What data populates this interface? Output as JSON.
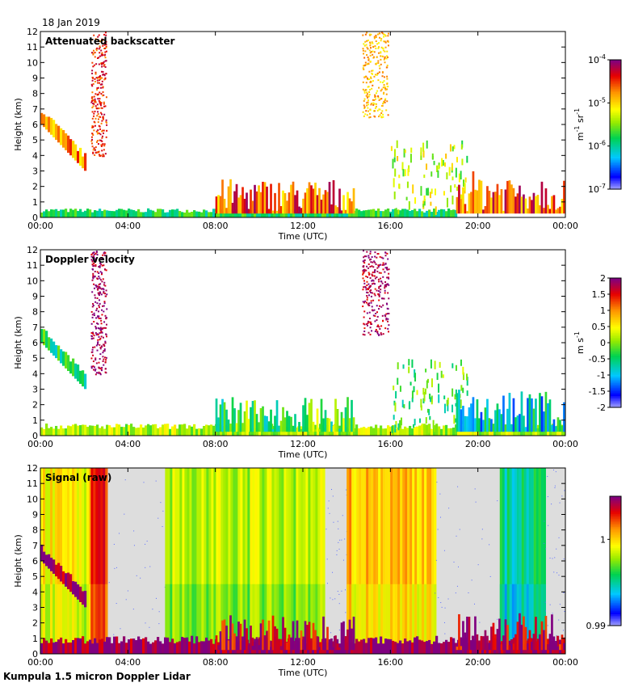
{
  "date": "18 Jan 2019",
  "footer": "Kumpula 1.5 micron Doppler Lidar",
  "colors": {
    "signal_background": "#dddddd",
    "missing": "#ffffff",
    "frame": "#000000"
  },
  "chart_data": [
    {
      "type": "heatmap",
      "title": "Attenuated backscatter",
      "xlabel": "Time (UTC)",
      "ylabel": "Height (km)",
      "xlim": [
        0,
        24
      ],
      "ylim": [
        0,
        12
      ],
      "xticks": [
        "00:00",
        "04:00",
        "08:00",
        "12:00",
        "16:00",
        "20:00",
        "00:00"
      ],
      "yticks": [
        "0",
        "1",
        "2",
        "3",
        "4",
        "5",
        "6",
        "7",
        "8",
        "9",
        "10",
        "11",
        "12"
      ],
      "colorbar": {
        "scale": "log",
        "range": [
          1e-07,
          0.0001
        ],
        "tick_labels": [
          {
            "value": -4,
            "base": "10",
            "exp": "-4"
          },
          {
            "value": -5,
            "base": "10",
            "exp": "-5"
          },
          {
            "value": -6,
            "base": "10",
            "exp": "-6"
          },
          {
            "value": -7,
            "base": "10",
            "exp": "-7"
          }
        ],
        "unit": {
          "parts": [
            [
              "m",
              ""
            ],
            [
              "-1",
              "sup"
            ],
            [
              " sr",
              ""
            ],
            [
              "-1",
              "sup"
            ]
          ]
        }
      },
      "features": [
        {
          "kind": "surface_layer",
          "t": [
            0,
            19
          ],
          "top_km": 0.45,
          "level": 0.4
        },
        {
          "kind": "cloud",
          "t": [
            0,
            2.0
          ],
          "bottom_km": [
            6.0,
            3.0
          ],
          "depth_km": 0.9,
          "level": 0.75
        },
        {
          "kind": "virga",
          "t": [
            2.3,
            3.0
          ],
          "h": [
            4.0,
            12.0
          ],
          "level": 0.85
        },
        {
          "kind": "boundary_layer",
          "t": [
            8.0,
            14.3
          ],
          "top_km": 2.5,
          "level": 0.8
        },
        {
          "kind": "virga",
          "t": [
            14.7,
            15.9
          ],
          "h": [
            6.5,
            12.0
          ],
          "level": 0.7
        },
        {
          "kind": "scattered",
          "t": [
            16.0,
            19.5
          ],
          "h": [
            0.5,
            5.0
          ],
          "level": 0.55
        },
        {
          "kind": "boundary_layer",
          "t": [
            19.0,
            24.0
          ],
          "top_km": 3.0,
          "level": 0.8
        }
      ]
    },
    {
      "type": "heatmap",
      "title": "Doppler velocity",
      "xlabel": "Time (UTC)",
      "ylabel": "Height (km)",
      "xlim": [
        0,
        24
      ],
      "ylim": [
        0,
        12
      ],
      "xticks": [
        "00:00",
        "04:00",
        "08:00",
        "12:00",
        "16:00",
        "20:00",
        "00:00"
      ],
      "yticks": [
        "0",
        "1",
        "2",
        "3",
        "4",
        "5",
        "6",
        "7",
        "8",
        "9",
        "10",
        "11",
        "12"
      ],
      "colorbar": {
        "scale": "linear",
        "range": [
          -2,
          2
        ],
        "tick_labels": [
          {
            "value": 2,
            "label": "2"
          },
          {
            "value": 1.5,
            "label": "1.5"
          },
          {
            "value": 1,
            "label": "1"
          },
          {
            "value": 0.5,
            "label": "0.5"
          },
          {
            "value": 0,
            "label": "0"
          },
          {
            "value": -0.5,
            "label": "-0.5"
          },
          {
            "value": -1,
            "label": "-1"
          },
          {
            "value": -1.5,
            "label": "-1.5"
          },
          {
            "value": -2,
            "label": "-2"
          }
        ],
        "unit": {
          "parts": [
            [
              "m s",
              ""
            ],
            [
              "-1",
              "sup"
            ]
          ]
        }
      },
      "features": [
        {
          "kind": "surface_layer",
          "t": [
            0,
            24
          ],
          "top_km": 0.6,
          "level": 0.55
        },
        {
          "kind": "cloud",
          "t": [
            0,
            2.0
          ],
          "bottom_km": [
            6.0,
            3.0
          ],
          "depth_km": 0.9,
          "level": 0.4
        },
        {
          "kind": "virga",
          "t": [
            2.3,
            3.0
          ],
          "h": [
            4.0,
            12.0
          ],
          "level": 0.97
        },
        {
          "kind": "boundary_layer",
          "t": [
            8.0,
            14.3
          ],
          "top_km": 2.5,
          "level": 0.45
        },
        {
          "kind": "virga",
          "t": [
            14.7,
            15.9
          ],
          "h": [
            6.5,
            12.0
          ],
          "level": 0.95
        },
        {
          "kind": "scattered",
          "t": [
            16.0,
            19.5
          ],
          "h": [
            0.5,
            5.0
          ],
          "level": 0.45
        },
        {
          "kind": "boundary_layer",
          "t": [
            19.0,
            24.0
          ],
          "top_km": 3.0,
          "level": 0.3
        }
      ]
    },
    {
      "type": "heatmap",
      "title": "Signal (raw)",
      "xlabel": "Time (UTC)",
      "ylabel": "Height (km)",
      "xlim": [
        0,
        24
      ],
      "ylim": [
        0,
        12
      ],
      "xticks": [
        "00:00",
        "04:00",
        "08:00",
        "12:00",
        "16:00",
        "20:00",
        "00:00"
      ],
      "yticks": [
        "0",
        "1",
        "2",
        "3",
        "4",
        "5",
        "6",
        "7",
        "8",
        "9",
        "10",
        "11",
        "12"
      ],
      "colorbar": {
        "scale": "linear",
        "range": [
          0.99,
          1.005
        ],
        "tick_labels": [
          {
            "value": 1,
            "label": "1"
          },
          {
            "value": 0.99,
            "label": "0.99"
          }
        ],
        "unit": null
      },
      "noise_bands": [
        {
          "t": [
            0,
            2.3
          ],
          "level": 0.62
        },
        {
          "t": [
            2.3,
            3.0
          ],
          "level": 0.88
        },
        {
          "t": [
            3.0,
            5.7
          ],
          "level": -1
        },
        {
          "t": [
            5.7,
            13.0
          ],
          "level": 0.55
        },
        {
          "t": [
            13.0,
            14.0
          ],
          "level": -1
        },
        {
          "t": [
            14.0,
            18.0
          ],
          "level": 0.7
        },
        {
          "t": [
            18.0,
            21.0
          ],
          "level": -1
        },
        {
          "t": [
            21.0,
            23.0
          ],
          "level": 0.35
        },
        {
          "t": [
            23.0,
            24.0
          ],
          "level": -1
        }
      ],
      "features": [
        {
          "kind": "surface_layer",
          "t": [
            0,
            24
          ],
          "top_km": 0.9,
          "level": 0.97
        },
        {
          "kind": "cloud",
          "t": [
            0,
            2.0
          ],
          "bottom_km": [
            6.0,
            3.0
          ],
          "depth_km": 0.9,
          "level": 0.97
        },
        {
          "kind": "boundary_layer",
          "t": [
            8.0,
            14.3
          ],
          "top_km": 2.5,
          "level": 0.97
        },
        {
          "kind": "boundary_layer",
          "t": [
            19.0,
            24.0
          ],
          "top_km": 3.0,
          "level": 0.97
        }
      ]
    }
  ]
}
